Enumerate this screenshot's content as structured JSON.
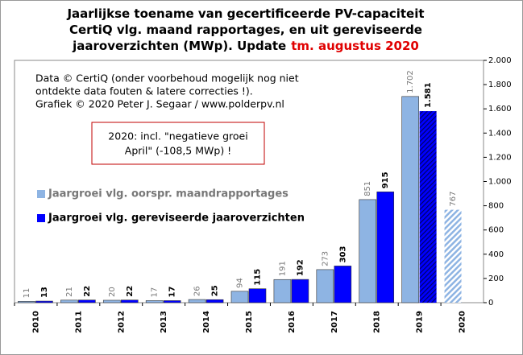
{
  "chart_data": {
    "type": "bar",
    "title": [
      "Jaarlijkse toename van gecertificeerde PV-capaciteit",
      "CertiQ vlg. maand rapportages, en uit gereviseerde",
      "jaaroverzichten (MWp). Update"
    ],
    "title_highlight": "tm. augustus 2020",
    "annotations": [
      "Data © CertiQ (onder voorbehoud mogelijk  nog niet",
      "ontdekte data fouten & latere correcties !).",
      "Grafiek  © 2020 Peter J. Segaar / www.polderpv.nl"
    ],
    "note": [
      "2020: incl. \"negatieve groei",
      "April\"  (-108,5 MWp) !"
    ],
    "categories": [
      "2010",
      "2011",
      "2012",
      "2013",
      "2014",
      "2015",
      "2016",
      "2017",
      "2018",
      "2019",
      "2020"
    ],
    "series": [
      {
        "name": "Jaargroei vlg. oorspr. maandrapportages",
        "color": "#8eb4e3",
        "label_color": "#777777",
        "values": [
          11,
          21,
          20,
          17,
          26,
          94,
          191,
          273,
          851,
          1702,
          767
        ],
        "value_labels": [
          "11",
          "21",
          "20",
          "17",
          "26",
          "94",
          "191",
          "273",
          "851",
          "1.702",
          "767"
        ],
        "hatched": [
          10
        ]
      },
      {
        "name": "Jaargroei vlg. gereviseerde jaaroverzichten",
        "color": "#0000ff",
        "label_color": "#000000",
        "values": [
          13,
          22,
          22,
          17,
          25,
          115,
          192,
          303,
          915,
          1581,
          null
        ],
        "value_labels": [
          "13",
          "22",
          "22",
          "17",
          "25",
          "115",
          "192",
          "303",
          "915",
          "1.581",
          null
        ],
        "hatched": [
          9
        ]
      }
    ],
    "ylim": [
      0,
      2000
    ],
    "yticks": [
      0,
      200,
      400,
      600,
      800,
      {
        "value": 1000,
        "label": "1.000"
      },
      {
        "value": 1200,
        "label": "1.200"
      },
      {
        "value": 1400,
        "label": "1.400"
      },
      {
        "value": 1600,
        "label": "1.600"
      },
      {
        "value": 1800,
        "label": "1.800"
      },
      {
        "value": 2000,
        "label": "2.000"
      }
    ],
    "grid": false
  }
}
